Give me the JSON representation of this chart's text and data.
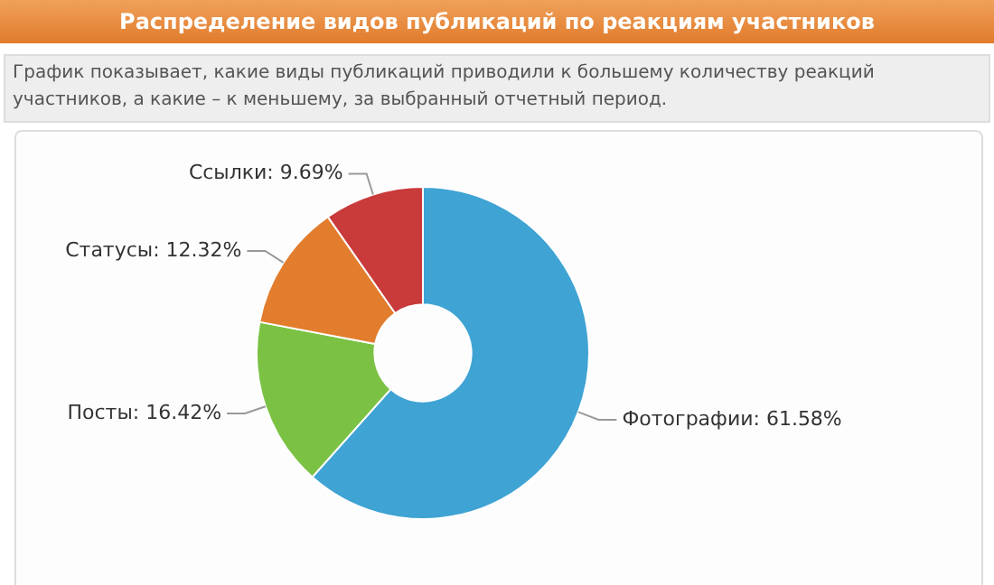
{
  "chart_data": {
    "type": "donut",
    "title": "Распределение видов публикаций по реакциям участников",
    "subtitle": "График показывает, какие виды публикаций приводили к большему количеству реакций участников, а какие – к меньшему, за выбранный отчетный период.",
    "categories": [
      "Фотографии",
      "Посты",
      "Статусы",
      "Ссылки"
    ],
    "values": [
      61.58,
      16.42,
      12.32,
      9.69
    ],
    "value_labels": [
      "61.58%",
      "16.42%",
      "12.32%",
      "9.69%"
    ],
    "colors": [
      "#3fa3d4",
      "#7bc244",
      "#e27d2e",
      "#c93a3b"
    ],
    "legend": false
  }
}
